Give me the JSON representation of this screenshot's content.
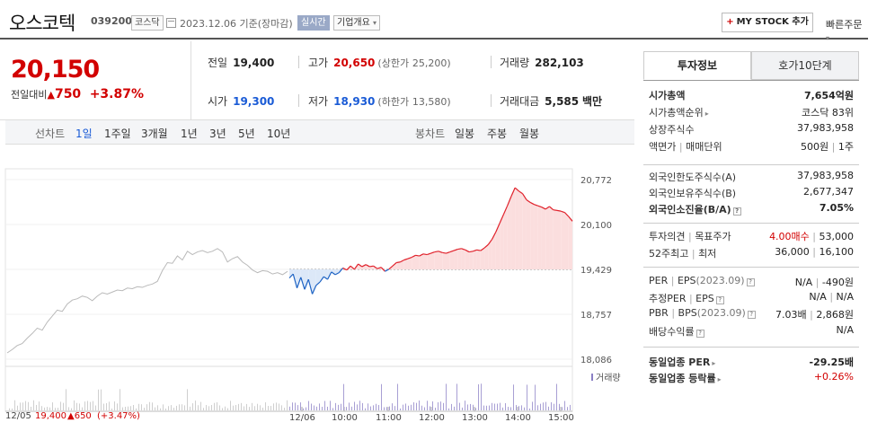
{
  "header": {
    "name": "오스코텍",
    "code": "039200",
    "market": "코스닥",
    "date": "2023.12.06 기준(장마감)",
    "live": "실시간",
    "overview": "기업개요",
    "mystock": "MY STOCK 추가",
    "quick": "빠른주문"
  },
  "summary": {
    "price": "20,150",
    "change_label": "전일대비",
    "change": "750",
    "change_pct": "+3.87%",
    "prev_label": "전일",
    "prev": "19,400",
    "high_label": "고가",
    "high": "20,650",
    "upper_label": "(상한가",
    "upper": "25,200)",
    "volume_label": "거래량",
    "volume": "282,103",
    "open_label": "시가",
    "open": "19,300",
    "low_label": "저가",
    "low": "18,930",
    "lower_label": "(하한가",
    "lower": "13,580)",
    "amount_label": "거래대금",
    "amount": "5,585",
    "amount_unit": "백만"
  },
  "tabs": {
    "line_label": "선차트",
    "line_items": [
      "1일",
      "1주일",
      "3개월",
      "1년",
      "3년",
      "5년",
      "10년"
    ],
    "candle_label": "봉차트",
    "candle_items": [
      "일봉",
      "주봉",
      "월봉"
    ]
  },
  "chart_data": {
    "type": "line",
    "title": "",
    "y_ticks": [
      "20,772",
      "20,100",
      "19,429",
      "18,757",
      "18,086"
    ],
    "ylim": [
      18086,
      20772
    ],
    "baseline": 19429,
    "volume_label": "거래량",
    "x_ticks": [
      "12/06",
      "10:00",
      "11:00",
      "12:00",
      "13:00",
      "14:00",
      "15:00"
    ],
    "prev_day": {
      "date": "12/05",
      "close": "19,400",
      "change": "650",
      "change_pct": "(+3.47%)"
    },
    "prev_series": [
      18180,
      18230,
      18290,
      18320,
      18400,
      18470,
      18550,
      18520,
      18640,
      18730,
      18820,
      18800,
      18910,
      18970,
      18990,
      19030,
      19010,
      18960,
      19030,
      19080,
      19060,
      19090,
      19120,
      19110,
      19150,
      19140,
      19170,
      19160,
      19190,
      19210,
      19250,
      19410,
      19530,
      19520,
      19630,
      19570,
      19700,
      19650,
      19690,
      19710,
      19680,
      19700,
      19740,
      19690,
      19540,
      19590,
      19620,
      19540,
      19490,
      19420,
      19380,
      19410,
      19400,
      19360,
      19380,
      19350,
      19400
    ],
    "today_series": [
      19300,
      19360,
      19150,
      19310,
      19130,
      19280,
      19060,
      19190,
      19240,
      19320,
      19280,
      19390,
      19350,
      19380,
      19450,
      19420,
      19480,
      19430,
      19510,
      19470,
      19500,
      19470,
      19480,
      19440,
      19460,
      19400,
      19430,
      19480,
      19530,
      19540,
      19570,
      19590,
      19610,
      19640,
      19630,
      19660,
      19650,
      19670,
      19690,
      19700,
      19680,
      19670,
      19690,
      19710,
      19730,
      19740,
      19720,
      19690,
      19700,
      19720,
      19710,
      19750,
      19800,
      19880,
      19990,
      20120,
      20250,
      20380,
      20520,
      20650,
      20600,
      20560,
      20470,
      20430,
      20400,
      20380,
      20360,
      20330,
      20370,
      20320,
      20310,
      20300,
      20280,
      20220,
      20150
    ]
  },
  "right": {
    "tab_active": "투자정보",
    "tab_other": "호가10단계",
    "rows1": [
      {
        "k": "시가총액",
        "v": "7,654억원"
      },
      {
        "k": "시가총액순위",
        "v": "코스닥 83위"
      },
      {
        "k": "상장주식수",
        "v": "37,983,958"
      },
      {
        "k": "액면가",
        "k2": "매매단위",
        "v": "500원",
        "v2": "1주"
      }
    ],
    "rows2": [
      {
        "k": "외국인한도주식수(A)",
        "v": "37,983,958"
      },
      {
        "k": "외국인보유주식수(B)",
        "v": "2,677,347"
      },
      {
        "k": "외국인소진율(B/A)",
        "v": "7.05%"
      }
    ],
    "rows3": [
      {
        "k": "투자의견",
        "k2": "목표주가",
        "v": "4.00매수",
        "v2": "53,000"
      },
      {
        "k": "52주최고",
        "k2": "최저",
        "v": "36,000",
        "v2": "16,100"
      }
    ],
    "rows4": [
      {
        "k": "PER",
        "k2": "EPS",
        "k3": "(2023.09)",
        "v": "N/A",
        "v2": "-490원"
      },
      {
        "k": "추정PER",
        "k2": "EPS",
        "v": "N/A",
        "v2": "N/A"
      },
      {
        "k": "PBR",
        "k2": "BPS",
        "k3": "(2023.09)",
        "v": "7.03배",
        "v2": "2,868원"
      },
      {
        "k": "배당수익률",
        "v": "N/A"
      }
    ],
    "rows5": [
      {
        "k": "동일업종 PER",
        "v": "-29.25배"
      },
      {
        "k": "동일업종 등락률",
        "v": "+0.26%"
      }
    ]
  }
}
